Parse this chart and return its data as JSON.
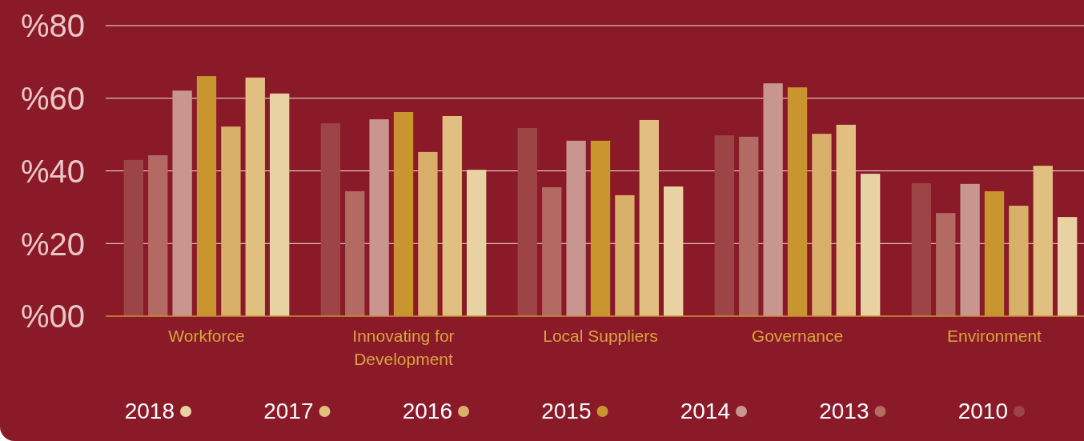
{
  "chart_data": {
    "type": "bar",
    "categories": [
      "Workforce",
      "Innovating for Development",
      "Local Suppliers",
      "Governance",
      "Environment"
    ],
    "series": [
      {
        "name": "2010",
        "color": "#9c4446",
        "values": [
          43.0,
          53.1,
          51.8,
          49.8,
          36.6
        ]
      },
      {
        "name": "2013",
        "color": "#b26a62",
        "values": [
          44.3,
          34.4,
          35.5,
          49.4,
          28.4
        ]
      },
      {
        "name": "2014",
        "color": "#c9968f",
        "values": [
          62.1,
          54.2,
          48.3,
          64.1,
          36.4
        ]
      },
      {
        "name": "2015",
        "color": "#c9952e",
        "values": [
          66.1,
          56.2,
          48.3,
          63.0,
          34.4
        ]
      },
      {
        "name": "2016",
        "color": "#d8b06a",
        "values": [
          52.2,
          45.2,
          33.3,
          50.2,
          30.4
        ]
      },
      {
        "name": "2017",
        "color": "#e0bf80",
        "values": [
          65.7,
          55.1,
          54.0,
          52.7,
          41.4
        ]
      },
      {
        "name": "2018",
        "color": "#e8d2a4",
        "values": [
          61.3,
          40.3,
          35.7,
          39.2,
          27.3
        ]
      }
    ],
    "ylim": [
      0,
      80
    ],
    "yticks": [
      {
        "value": 0,
        "label": "%00"
      },
      {
        "value": 20,
        "label": "%20"
      },
      {
        "value": 40,
        "label": "%40"
      },
      {
        "value": 60,
        "label": "%60"
      },
      {
        "value": 80,
        "label": "%80"
      }
    ],
    "grid": "y",
    "legend": "bottom"
  }
}
